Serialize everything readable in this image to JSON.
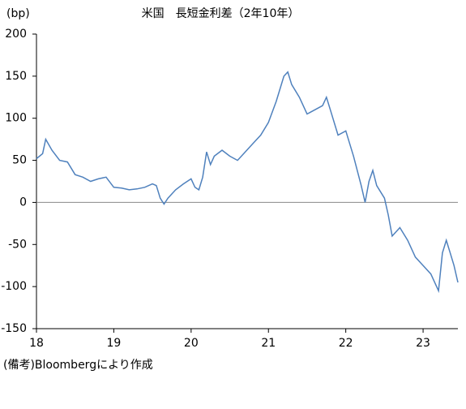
{
  "chart_data": {
    "type": "line",
    "title": "米国　長短金利差（2年10年）",
    "y_label": "(bp)",
    "note": "(備考)Bloombergにより作成",
    "x": [
      18.0,
      18.08,
      18.12,
      18.2,
      18.3,
      18.4,
      18.5,
      18.6,
      18.7,
      18.8,
      18.9,
      19.0,
      19.1,
      19.2,
      19.3,
      19.4,
      19.5,
      19.55,
      19.6,
      19.65,
      19.7,
      19.8,
      19.9,
      20.0,
      20.05,
      20.1,
      20.15,
      20.2,
      20.25,
      20.3,
      20.4,
      20.5,
      20.6,
      20.7,
      20.8,
      20.9,
      21.0,
      21.1,
      21.2,
      21.25,
      21.3,
      21.4,
      21.5,
      21.6,
      21.7,
      21.75,
      21.8,
      21.9,
      22.0,
      22.1,
      22.2,
      22.25,
      22.3,
      22.35,
      22.4,
      22.5,
      22.55,
      22.6,
      22.7,
      22.8,
      22.9,
      23.0,
      23.1,
      23.2,
      23.25,
      23.3,
      23.35,
      23.4,
      23.45
    ],
    "series": [
      {
        "name": "長短金利差",
        "color": "#4f81bd",
        "values": [
          52,
          58,
          75,
          62,
          50,
          48,
          33,
          30,
          25,
          28,
          30,
          18,
          17,
          15,
          16,
          18,
          22,
          20,
          5,
          -2,
          5,
          15,
          22,
          28,
          18,
          15,
          30,
          60,
          45,
          55,
          62,
          55,
          50,
          60,
          70,
          80,
          95,
          120,
          150,
          155,
          140,
          125,
          105,
          110,
          115,
          125,
          110,
          80,
          85,
          55,
          20,
          0,
          25,
          38,
          20,
          5,
          -15,
          -40,
          -30,
          -45,
          -65,
          -75,
          -85,
          -105,
          -60,
          -45,
          -60,
          -75,
          -95
        ]
      }
    ],
    "xlim": [
      18,
      23.45
    ],
    "xticks": [
      18,
      19,
      20,
      21,
      22,
      23
    ],
    "ylim": [
      -150,
      200
    ],
    "yticks": [
      -150,
      -100,
      -50,
      0,
      50,
      100,
      150,
      200
    ]
  }
}
